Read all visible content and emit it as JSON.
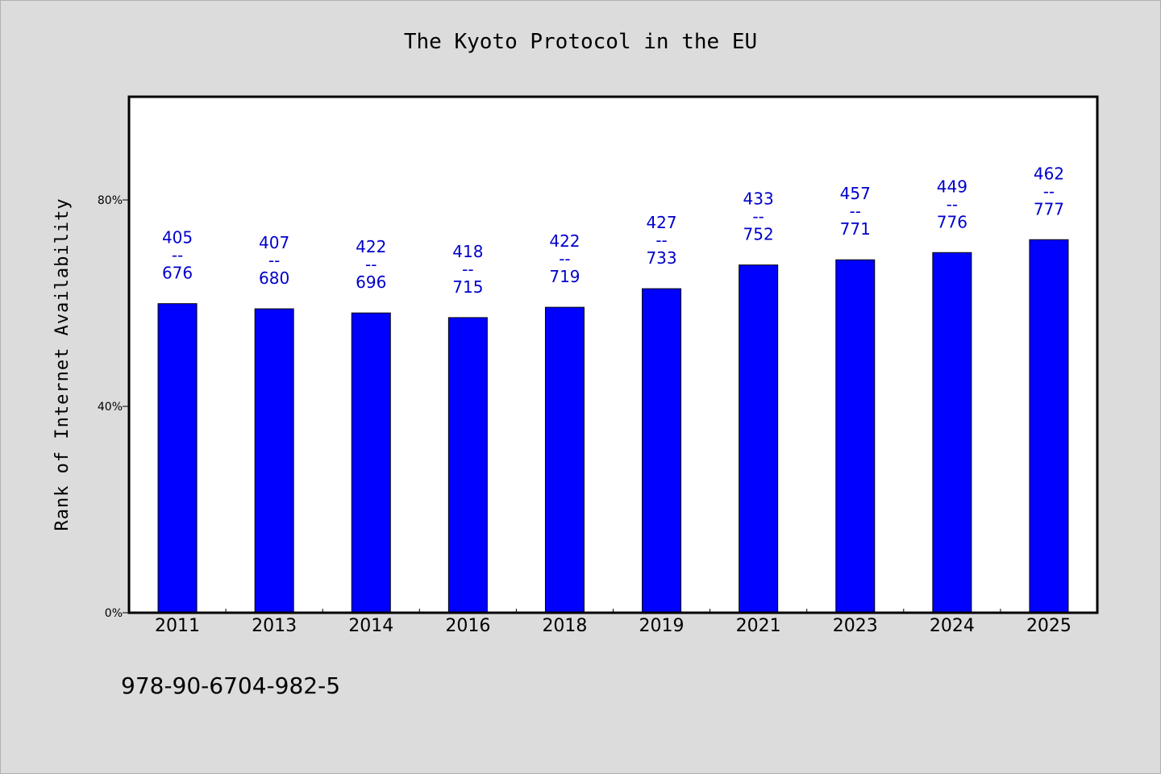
{
  "chart_data": {
    "type": "bar",
    "title": "The Kyoto Protocol in the EU",
    "ylabel": "Rank of Internet Availability",
    "xlabel": "",
    "categories": [
      "2011",
      "2013",
      "2014",
      "2016",
      "2018",
      "2019",
      "2021",
      "2023",
      "2024",
      "2025"
    ],
    "values": [
      59.9,
      58.9,
      58.1,
      57.2,
      59.2,
      62.8,
      67.4,
      68.4,
      69.8,
      72.3
    ],
    "data_labels": [
      {
        "top": "405",
        "sep": "--",
        "bottom": "676"
      },
      {
        "top": "407",
        "sep": "--",
        "bottom": "680"
      },
      {
        "top": "422",
        "sep": "--",
        "bottom": "696"
      },
      {
        "top": "418",
        "sep": "--",
        "bottom": "715"
      },
      {
        "top": "422",
        "sep": "--",
        "bottom": "719"
      },
      {
        "top": "427",
        "sep": "--",
        "bottom": "733"
      },
      {
        "top": "433",
        "sep": "--",
        "bottom": "752"
      },
      {
        "top": "457",
        "sep": "--",
        "bottom": "771"
      },
      {
        "top": "449",
        "sep": "--",
        "bottom": "776"
      },
      {
        "top": "462",
        "sep": "--",
        "bottom": "777"
      }
    ],
    "ylim": [
      0,
      100
    ],
    "yticks": [
      {
        "value": 0,
        "label": "0%"
      },
      {
        "value": 40,
        "label": "40%"
      },
      {
        "value": 80,
        "label": "80%"
      }
    ],
    "grid": false,
    "bar_color": "#0000ff",
    "label_color": "#0000cc"
  },
  "footnote": "978-90-6704-982-5"
}
